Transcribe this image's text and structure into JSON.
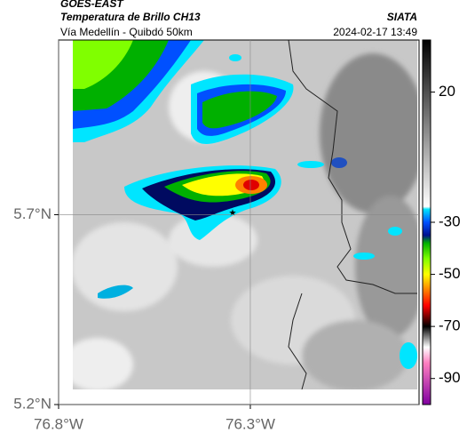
{
  "header": {
    "source": "GOES-EAST",
    "title": "Temperatura de Brillo CH13",
    "subtitle": "Vía Medellín - Quibdó 50km",
    "agency": "SIATA",
    "datetime": "2024-02-17 13:49"
  },
  "map": {
    "xlim": [
      -76.8,
      -75.86
    ],
    "ylim": [
      5.2,
      6.16
    ],
    "xticks": [
      {
        "value": -76.8,
        "label": "76.8°W"
      },
      {
        "value": -76.3,
        "label": "76.3°W"
      }
    ],
    "yticks": [
      {
        "value": 5.2,
        "label": "5.2°N"
      },
      {
        "value": 5.7,
        "label": "5.7°N"
      }
    ],
    "grid": true
  },
  "colorbar": {
    "clim": [
      40,
      -100
    ],
    "ticks": [
      20,
      -30,
      -50,
      -70,
      -90
    ],
    "stops": [
      {
        "value": 40,
        "color": "#000000"
      },
      {
        "value": -24,
        "color": "#ffffff"
      },
      {
        "value": -25,
        "color": "#00e5ff"
      },
      {
        "value": -30,
        "color": "#0050ff"
      },
      {
        "value": -35,
        "color": "#001090"
      },
      {
        "value": -38,
        "color": "#00b000"
      },
      {
        "value": -44,
        "color": "#80ff00"
      },
      {
        "value": -50,
        "color": "#ffff00"
      },
      {
        "value": -56,
        "color": "#ff8000"
      },
      {
        "value": -62,
        "color": "#ff0000"
      },
      {
        "value": -67,
        "color": "#600000"
      },
      {
        "value": -70,
        "color": "#000000"
      },
      {
        "value": -78,
        "color": "#ffffff"
      },
      {
        "value": -84,
        "color": "#ff80c0"
      },
      {
        "value": -100,
        "color": "#8000a0"
      }
    ]
  }
}
